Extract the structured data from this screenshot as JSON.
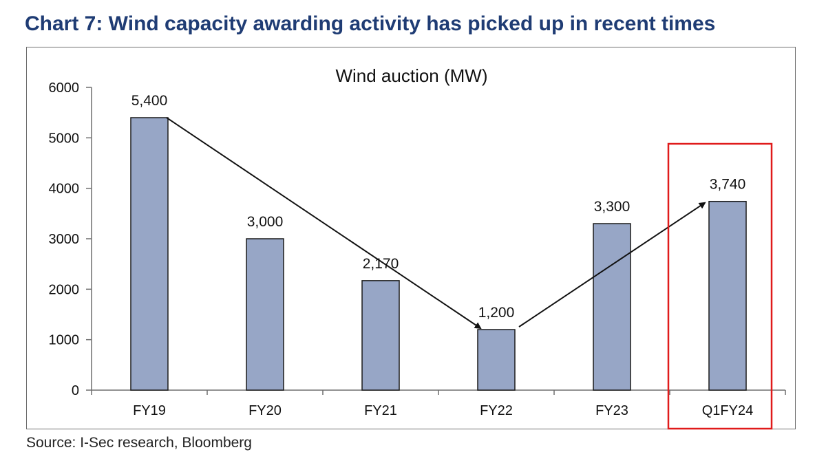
{
  "header": {
    "title": "Chart 7: Wind capacity awarding activity has picked up in recent times"
  },
  "footer": {
    "source": "Source: I-Sec research, Bloomberg"
  },
  "colors": {
    "title": "#1f3c74",
    "bar_fill": "#97a6c6",
    "bar_stroke": "#1a1a1a",
    "highlight_box": "#e01b1b",
    "arrow": "#111111"
  },
  "chart_data": {
    "type": "bar",
    "title": "Wind auction (MW)",
    "xlabel": "",
    "ylabel": "",
    "categories": [
      "FY19",
      "FY20",
      "FY21",
      "FY22",
      "FY23",
      "Q1FY24"
    ],
    "values": [
      5400,
      3000,
      2170,
      1200,
      3300,
      3740
    ],
    "data_labels": [
      "5,400",
      "3,000",
      "2,170",
      "1,200",
      "3,300",
      "3,740"
    ],
    "ylim": [
      0,
      6000
    ],
    "yticks": [
      0,
      1000,
      2000,
      3000,
      4000,
      5000,
      6000
    ],
    "ytick_labels": [
      "0",
      "1000",
      "2000",
      "3000",
      "4000",
      "5000",
      "6000"
    ],
    "grid": false,
    "highlight_category": "Q1FY24",
    "annotations": [
      {
        "type": "arrow",
        "from": "FY19",
        "to": "FY22",
        "meaning": "declining trend"
      },
      {
        "type": "arrow",
        "from": "FY22",
        "to": "Q1FY24",
        "meaning": "rising trend"
      }
    ]
  }
}
